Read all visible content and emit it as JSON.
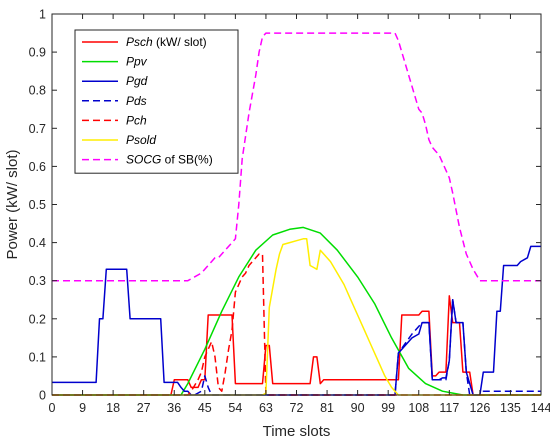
{
  "chart_data": {
    "type": "line",
    "xlabel": "Time slots",
    "ylabel": "Power (kW/ slot)",
    "xlim": [
      0,
      144
    ],
    "ylim": [
      0,
      1
    ],
    "xticks": [
      0,
      9,
      18,
      27,
      36,
      45,
      54,
      63,
      72,
      81,
      90,
      99,
      108,
      117,
      126,
      135,
      144
    ],
    "yticks": [
      0,
      0.1,
      0.2,
      0.3,
      0.4,
      0.5,
      0.6,
      0.7,
      0.8,
      0.9,
      1
    ],
    "ytick_labels": [
      "0",
      "0.1",
      "0.2",
      "0.3",
      "0.4",
      "0.5",
      "0.6",
      "0.7",
      "0.8",
      "0.9",
      "1"
    ],
    "grid": false,
    "legend_position": "top-left",
    "series": [
      {
        "name": "Psch (kW/ slot)",
        "legend": [
          {
            "text": "Psch",
            "italic": true
          },
          {
            "text": " (kW/ slot)",
            "italic": false
          }
        ],
        "color": "#ff0000",
        "dash": "solid",
        "x": [
          0,
          35,
          36,
          37,
          40,
          41,
          43,
          44,
          45,
          46,
          53,
          54,
          62,
          63,
          64,
          65,
          66,
          76,
          77,
          78,
          79,
          80,
          102,
          103,
          104,
          108,
          109,
          110,
          111,
          112,
          113,
          114,
          115,
          116,
          117,
          118,
          120,
          121,
          123,
          124,
          125,
          144
        ],
        "y": [
          0,
          0,
          0.04,
          0.04,
          0.04,
          0.02,
          0.02,
          0.04,
          0.04,
          0.21,
          0.21,
          0.03,
          0.03,
          0.13,
          0.13,
          0.03,
          0.03,
          0.03,
          0.1,
          0.1,
          0.03,
          0.04,
          0.04,
          0.21,
          0.21,
          0.21,
          0.22,
          0.22,
          0.22,
          0.05,
          0.05,
          0.06,
          0.06,
          0.06,
          0.26,
          0.19,
          0.19,
          0.06,
          0.06,
          0,
          0,
          0
        ]
      },
      {
        "name": "Ppv",
        "legend": [
          {
            "text": "Ppv",
            "italic": true
          }
        ],
        "color": "#00dd00",
        "dash": "solid",
        "x": [
          0,
          38,
          40,
          45,
          50,
          55,
          60,
          65,
          70,
          74,
          79,
          84,
          90,
          95,
          100,
          105,
          110,
          115,
          118,
          121,
          144
        ],
        "y": [
          0,
          0,
          0.03,
          0.12,
          0.22,
          0.31,
          0.38,
          0.42,
          0.435,
          0.44,
          0.425,
          0.38,
          0.31,
          0.24,
          0.15,
          0.07,
          0.03,
          0.01,
          0.005,
          0,
          0
        ]
      },
      {
        "name": "Pgd",
        "legend": [
          {
            "text": "Pgd",
            "italic": true
          }
        ],
        "color": "#0000cd",
        "dash": "solid",
        "x": [
          0,
          13,
          14,
          15,
          16,
          19,
          20,
          22,
          23,
          24,
          32,
          33,
          37,
          38,
          39,
          40,
          41,
          101,
          102,
          104,
          106,
          108,
          109,
          110,
          111,
          112,
          114,
          115,
          116,
          117,
          118,
          119,
          121,
          122,
          124,
          126,
          127,
          129,
          130,
          131,
          132,
          133,
          137,
          138,
          140,
          141,
          142,
          144
        ],
        "y": [
          0.033,
          0.033,
          0.2,
          0.2,
          0.33,
          0.33,
          0.33,
          0.33,
          0.2,
          0.2,
          0.2,
          0.033,
          0.033,
          0.02,
          0.01,
          0.01,
          0,
          0,
          0.11,
          0.13,
          0.15,
          0.16,
          0.19,
          0.19,
          0.19,
          0.04,
          0.04,
          0.045,
          0.045,
          0.09,
          0.25,
          0.19,
          0.19,
          0.06,
          0,
          0,
          0.06,
          0.06,
          0.06,
          0.22,
          0.22,
          0.34,
          0.34,
          0.35,
          0.36,
          0.39,
          0.39,
          0.39
        ]
      },
      {
        "name": "Pds",
        "legend": [
          {
            "text": "Pds",
            "italic": true
          }
        ],
        "color": "#0000cd",
        "dash": "dashed",
        "x": [
          0,
          42,
          44,
          45,
          46,
          47,
          48,
          101,
          102,
          106,
          109,
          110,
          111,
          112,
          113,
          114,
          115,
          116,
          117,
          118,
          119,
          121,
          122,
          123,
          124,
          126,
          127,
          144
        ],
        "y": [
          0,
          0,
          0.01,
          0.05,
          0.02,
          0,
          0,
          0,
          0.11,
          0.16,
          0.19,
          0.19,
          0.19,
          0.04,
          0.04,
          0.04,
          0.04,
          0.04,
          0.09,
          0.25,
          0.19,
          0.19,
          0.06,
          0,
          0,
          0,
          0.01,
          0.01
        ]
      },
      {
        "name": "Pch",
        "legend": [
          {
            "text": "Pch",
            "italic": true
          }
        ],
        "color": "#ff0000",
        "dash": "dashed",
        "x": [
          0,
          40,
          41,
          43,
          44,
          45,
          46,
          47,
          48,
          49,
          50,
          51,
          52,
          53,
          54,
          55,
          56,
          57,
          58,
          59,
          60,
          61,
          62,
          63,
          144
        ],
        "y": [
          0,
          0,
          0.01,
          0.04,
          0.06,
          0.1,
          0.12,
          0.14,
          0.1,
          0.02,
          0.01,
          0.06,
          0.12,
          0.17,
          0.27,
          0.29,
          0.31,
          0.32,
          0.34,
          0.35,
          0.36,
          0.37,
          0.37,
          0,
          0
        ]
      },
      {
        "name": "Psold",
        "legend": [
          {
            "text": "Psold",
            "italic": true
          }
        ],
        "color": "#ffee00",
        "dash": "solid",
        "x": [
          0,
          62,
          63,
          64,
          65,
          66,
          67,
          68,
          70,
          72,
          74,
          75,
          76,
          77,
          78,
          79,
          80,
          82,
          84,
          86,
          88,
          90,
          92,
          94,
          96,
          98,
          100,
          102,
          144
        ],
        "y": [
          0,
          0,
          0.005,
          0.23,
          0.28,
          0.33,
          0.37,
          0.395,
          0.4,
          0.405,
          0.41,
          0.41,
          0.34,
          0.335,
          0.33,
          0.38,
          0.37,
          0.35,
          0.32,
          0.29,
          0.25,
          0.21,
          0.17,
          0.13,
          0.09,
          0.05,
          0.02,
          0,
          0
        ]
      },
      {
        "name": "SOCG of SB(%)",
        "legend": [
          {
            "text": "SOCG",
            "italic": true
          },
          {
            "text": " of SB(%)",
            "italic": false
          }
        ],
        "color": "#ff00ff",
        "dash": "dashed",
        "x": [
          0,
          40,
          44,
          48,
          49,
          50,
          51,
          52,
          54,
          55,
          56,
          58,
          60,
          61,
          62,
          63,
          64,
          101,
          102,
          104,
          106,
          108,
          109,
          110,
          111,
          112,
          113,
          114,
          115,
          116,
          117,
          118,
          120,
          122,
          124,
          126,
          128,
          144
        ],
        "y": [
          0.3,
          0.3,
          0.32,
          0.36,
          0.36,
          0.37,
          0.38,
          0.39,
          0.41,
          0.5,
          0.62,
          0.74,
          0.84,
          0.9,
          0.94,
          0.95,
          0.95,
          0.95,
          0.93,
          0.87,
          0.81,
          0.75,
          0.74,
          0.71,
          0.67,
          0.65,
          0.64,
          0.63,
          0.61,
          0.59,
          0.57,
          0.53,
          0.44,
          0.37,
          0.33,
          0.3,
          0.3,
          0.3
        ]
      }
    ]
  }
}
